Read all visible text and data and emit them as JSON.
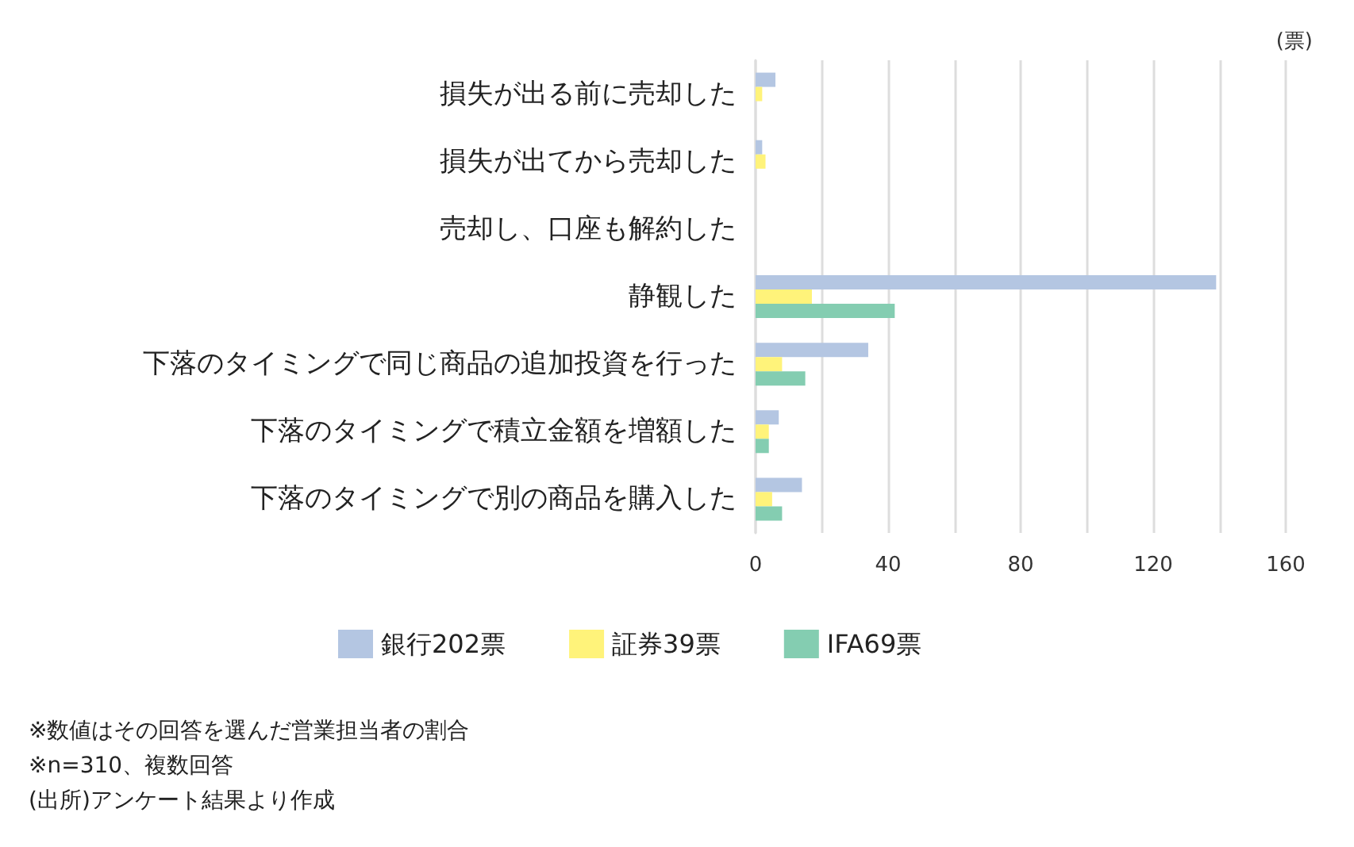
{
  "chart_data": {
    "type": "bar",
    "orientation": "horizontal",
    "xlabel": "(票)",
    "categories": [
      "損失が出る前に売却した",
      "損失が出てから売却した",
      "売却し、口座も解約した",
      "静観した",
      "下落のタイミングで同じ商品の追加投資を行った",
      "下落のタイミングで積立金額を増額した",
      "下落のタイミングで別の商品を購入した"
    ],
    "series": [
      {
        "name": "銀行202票",
        "color": "#b4c6e2",
        "values": [
          6,
          2,
          0,
          139,
          34,
          7,
          14
        ]
      },
      {
        "name": "証券39票",
        "color": "#fff37a",
        "values": [
          2,
          3,
          0,
          17,
          8,
          4,
          5
        ]
      },
      {
        "name": "IFA69票",
        "color": "#84cdb1",
        "values": [
          0,
          0,
          0,
          42,
          15,
          4,
          8
        ]
      }
    ],
    "xlim": [
      0,
      160
    ],
    "xticks": [
      0,
      {
        "value": 20,
        "label": null
      },
      40,
      {
        "value": 60,
        "label": null
      },
      80,
      {
        "value": 100,
        "label": null
      },
      120,
      {
        "value": 140,
        "label": null
      },
      160
    ],
    "grid": "x",
    "legend": "bottom",
    "annotations": [
      "※数値はその回答を選んだ営業担当者の割合",
      "※n=310、複数回答",
      "(出所)アンケート結果より作成"
    ]
  }
}
